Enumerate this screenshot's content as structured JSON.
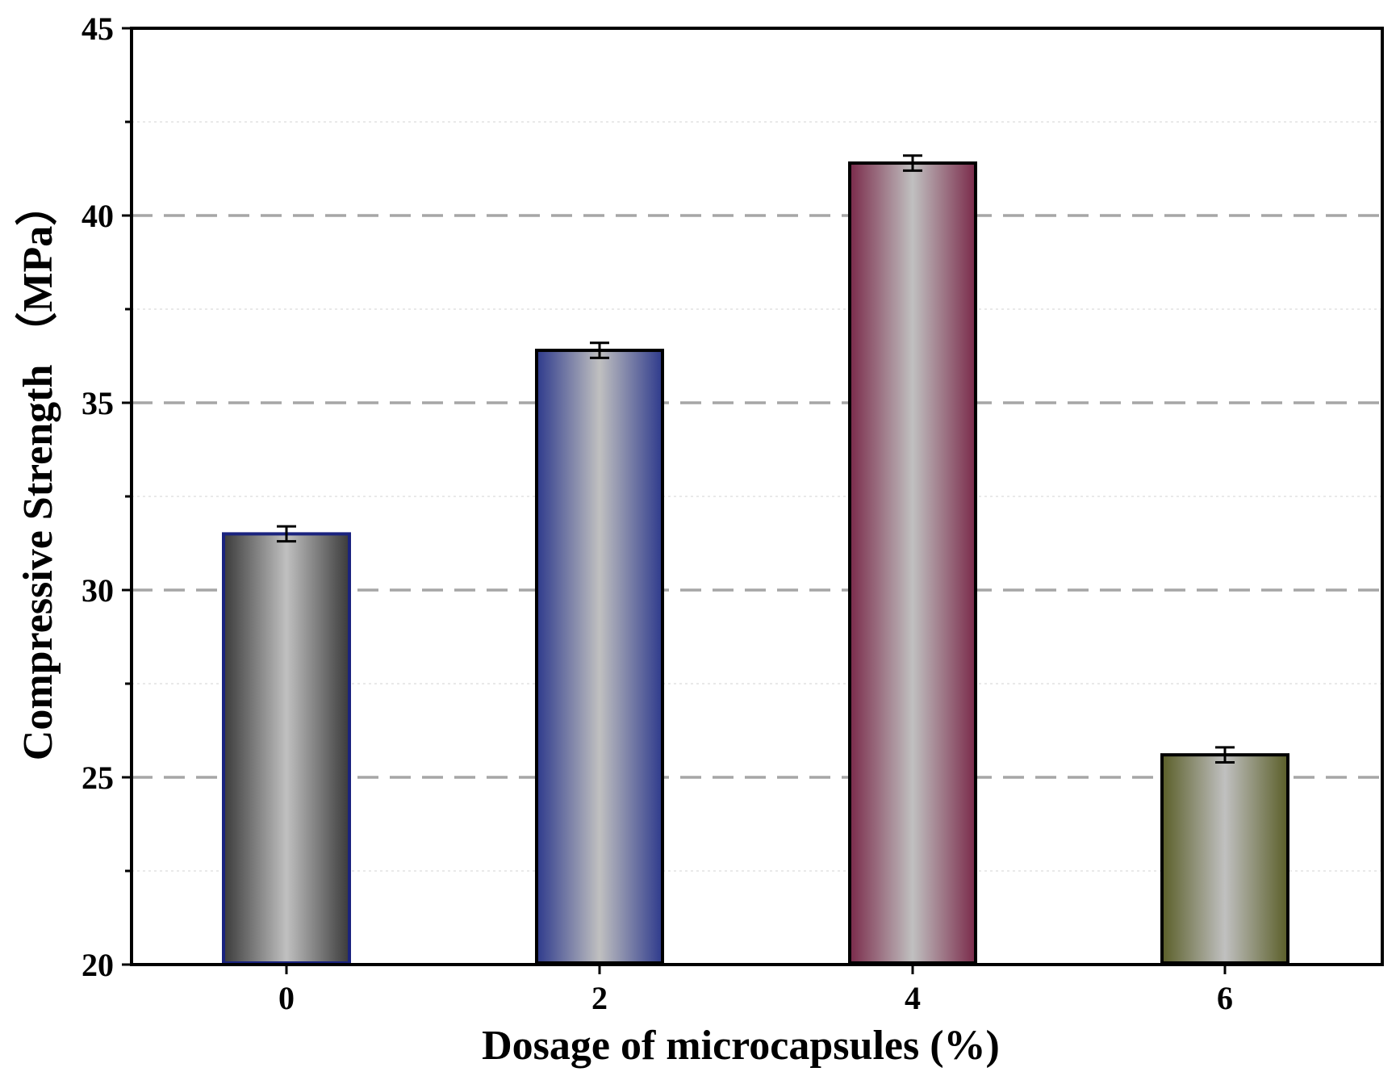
{
  "chart_data": {
    "type": "bar",
    "title": "",
    "xlabel": "Dosage of microcapsules (%)",
    "ylabel": "Compressive Strength （MPa）",
    "categories": [
      "0",
      "2",
      "4",
      "6"
    ],
    "values": [
      31.5,
      36.4,
      41.4,
      25.6
    ],
    "errors": [
      0.2,
      0.2,
      0.2,
      0.2
    ],
    "ylim": [
      20,
      45
    ],
    "yticks": [
      20,
      25,
      30,
      35,
      40,
      45
    ],
    "ytick_labels": [
      "20",
      "25",
      "30",
      "35",
      "40",
      "45"
    ],
    "grid": {
      "major_dashed": [
        25,
        30,
        35,
        40
      ],
      "minor_dotted": [
        22.5,
        27.5,
        32.5,
        37.5,
        42.5
      ]
    },
    "bars": [
      {
        "category": "0",
        "edge_color": "#ffffff",
        "outline_color": "#1a237e",
        "outer_color": "#3a3a3a",
        "center_color": "#c0c0c0"
      },
      {
        "category": "2",
        "edge_color": "#2e3a8c",
        "outline_color": "#000000",
        "outer_color": "#2e3a8c",
        "center_color": "#c0c0c0"
      },
      {
        "category": "4",
        "edge_color": "#7a2a4a",
        "outline_color": "#000000",
        "outer_color": "#7a2a4a",
        "center_color": "#c0c0c0"
      },
      {
        "category": "6",
        "edge_color": "#5a5e28",
        "outline_color": "#000000",
        "outer_color": "#5a5e28",
        "center_color": "#c0c0c0"
      }
    ]
  }
}
